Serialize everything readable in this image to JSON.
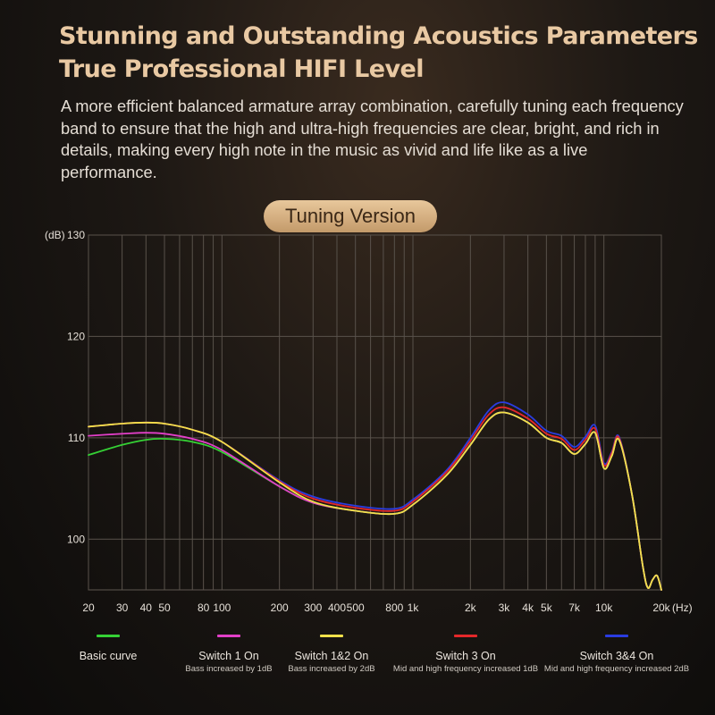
{
  "heading": {
    "line1": "Stunning and Outstanding Acoustics Parameters",
    "line2": "True Professional HIFI Level"
  },
  "description": "A more efficient balanced armature array combination, carefully tuning each frequency band to ensure that the high and ultra-high frequencies are clear, bright, and rich in details, making every high note in the music as vivid and life like as a live performance.",
  "badge": "Tuning Version",
  "chart_data": {
    "type": "line",
    "title": "",
    "y_unit_label": "(dB)",
    "x_unit_label": "(Hz)",
    "ylim": [
      95,
      130
    ],
    "xlim": [
      20,
      20000
    ],
    "x_scale": "log",
    "y_ticks": [
      {
        "value": 100,
        "label": "100"
      },
      {
        "value": 110,
        "label": "110"
      },
      {
        "value": 120,
        "label": "120"
      },
      {
        "value": 130,
        "label": "130"
      }
    ],
    "x_ticks": [
      {
        "value": 20,
        "label": "20"
      },
      {
        "value": 30,
        "label": "30"
      },
      {
        "value": 40,
        "label": "40"
      },
      {
        "value": 50,
        "label": "50"
      },
      {
        "value": 80,
        "label": "80"
      },
      {
        "value": 100,
        "label": "100"
      },
      {
        "value": 200,
        "label": "200"
      },
      {
        "value": 300,
        "label": "300"
      },
      {
        "value": 400,
        "label": "400"
      },
      {
        "value": 500,
        "label": "500"
      },
      {
        "value": 800,
        "label": "800"
      },
      {
        "value": 1000,
        "label": "1k"
      },
      {
        "value": 2000,
        "label": "2k"
      },
      {
        "value": 3000,
        "label": "3k"
      },
      {
        "value": 4000,
        "label": "4k"
      },
      {
        "value": 5000,
        "label": "5k"
      },
      {
        "value": 7000,
        "label": "7k"
      },
      {
        "value": 10000,
        "label": "10k"
      },
      {
        "value": 20000,
        "label": "20k"
      }
    ],
    "grid_x": [
      20,
      30,
      40,
      50,
      60,
      70,
      80,
      90,
      100,
      200,
      300,
      400,
      500,
      600,
      700,
      800,
      900,
      1000,
      2000,
      3000,
      4000,
      5000,
      6000,
      7000,
      8000,
      9000,
      10000,
      20000
    ],
    "grid_y": [
      100,
      110,
      120,
      130
    ],
    "grid": true,
    "legend_position": "bottom",
    "x": [
      20,
      30,
      40,
      50,
      70,
      100,
      200,
      300,
      500,
      800,
      1000,
      1500,
      2000,
      2500,
      3000,
      4000,
      5000,
      6000,
      7000,
      8000,
      9000,
      10000,
      11000,
      12000,
      14000,
      16000,
      17000,
      18000,
      19000,
      20000
    ],
    "series": [
      {
        "name": "Basic curve",
        "note": "",
        "color": "#35d135",
        "values": [
          108.3,
          109.3,
          109.8,
          109.9,
          109.6,
          108.6,
          105.2,
          103.6,
          102.8,
          102.5,
          103.4,
          106.3,
          109.3,
          111.8,
          112.5,
          111.5,
          110.0,
          109.5,
          108.4,
          109.4,
          110.5,
          107.0,
          108.2,
          109.8,
          104.5,
          97.3,
          95.2,
          96.0,
          96.4,
          95.0
        ]
      },
      {
        "name": "Switch 1 On",
        "note": "Bass increased by 1dB",
        "color": "#e23fc8",
        "values": [
          110.2,
          110.4,
          110.5,
          110.4,
          109.9,
          108.8,
          105.2,
          103.6,
          102.8,
          102.5,
          103.4,
          106.3,
          109.3,
          111.8,
          112.5,
          111.5,
          110.0,
          109.5,
          108.4,
          109.4,
          110.5,
          107.0,
          108.2,
          109.8,
          104.5,
          97.3,
          95.2,
          96.0,
          96.4,
          95.0
        ]
      },
      {
        "name": "Switch 1&2 On",
        "note": "Bass increased by 2dB",
        "color": "#f1e14a",
        "values": [
          111.1,
          111.4,
          111.5,
          111.4,
          110.8,
          109.6,
          105.6,
          103.7,
          102.8,
          102.5,
          103.4,
          106.3,
          109.3,
          111.8,
          112.5,
          111.5,
          110.0,
          109.5,
          108.4,
          109.4,
          110.5,
          107.0,
          108.2,
          109.8,
          104.5,
          97.3,
          95.2,
          96.0,
          96.4,
          95.0
        ]
      },
      {
        "name": "Switch 3 On",
        "note": "Mid and high frequency increased 1dB",
        "color": "#e5282a",
        "values": [
          111.1,
          111.4,
          111.5,
          111.4,
          110.8,
          109.6,
          105.7,
          104.0,
          103.1,
          102.8,
          103.7,
          106.6,
          109.7,
          112.3,
          113.0,
          111.9,
          110.4,
          109.9,
          108.8,
          109.8,
          110.9,
          107.3,
          108.5,
          110.0,
          104.5,
          97.3,
          95.2,
          96.0,
          96.4,
          95.0
        ]
      },
      {
        "name": "Switch 3&4 On",
        "note": "Mid and high frequency increased 2dB",
        "color": "#2a3ce0",
        "values": [
          111.1,
          111.4,
          111.5,
          111.4,
          110.8,
          109.6,
          105.8,
          104.2,
          103.3,
          103.0,
          103.9,
          106.8,
          110.0,
          112.7,
          113.5,
          112.3,
          110.7,
          110.2,
          109.1,
          110.1,
          111.2,
          107.5,
          108.6,
          110.1,
          104.5,
          97.3,
          95.2,
          96.0,
          96.4,
          95.0
        ]
      }
    ]
  }
}
